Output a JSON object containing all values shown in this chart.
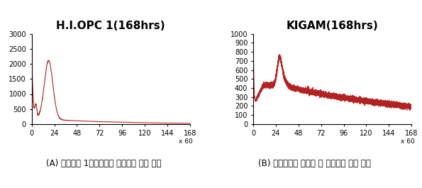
{
  "title_left": "H.I.OPC 1(168hrs)",
  "title_right": "KIGAM(168hrs)",
  "xlabel_note": "x 60",
  "caption_left": "(A) 시판중인 1종포틀랜트 시멘트의 수화 속도",
  "caption_right": "(B) 선탄폐석을 원료로 한 시멘트의 수화 속도",
  "left_ylim": [
    0,
    3000
  ],
  "right_ylim": [
    0,
    1000
  ],
  "left_yticks": [
    0,
    500,
    1000,
    1500,
    2000,
    2500,
    3000
  ],
  "right_yticks": [
    0,
    100,
    200,
    300,
    400,
    500,
    600,
    700,
    800,
    900,
    1000
  ],
  "xticks": [
    0,
    24,
    48,
    72,
    96,
    120,
    144,
    168
  ],
  "xlim": [
    0,
    168
  ],
  "line_color": "#b22222",
  "bg_color": "#ffffff",
  "title_fontsize": 11,
  "caption_fontsize": 8.5,
  "tick_fontsize": 7
}
